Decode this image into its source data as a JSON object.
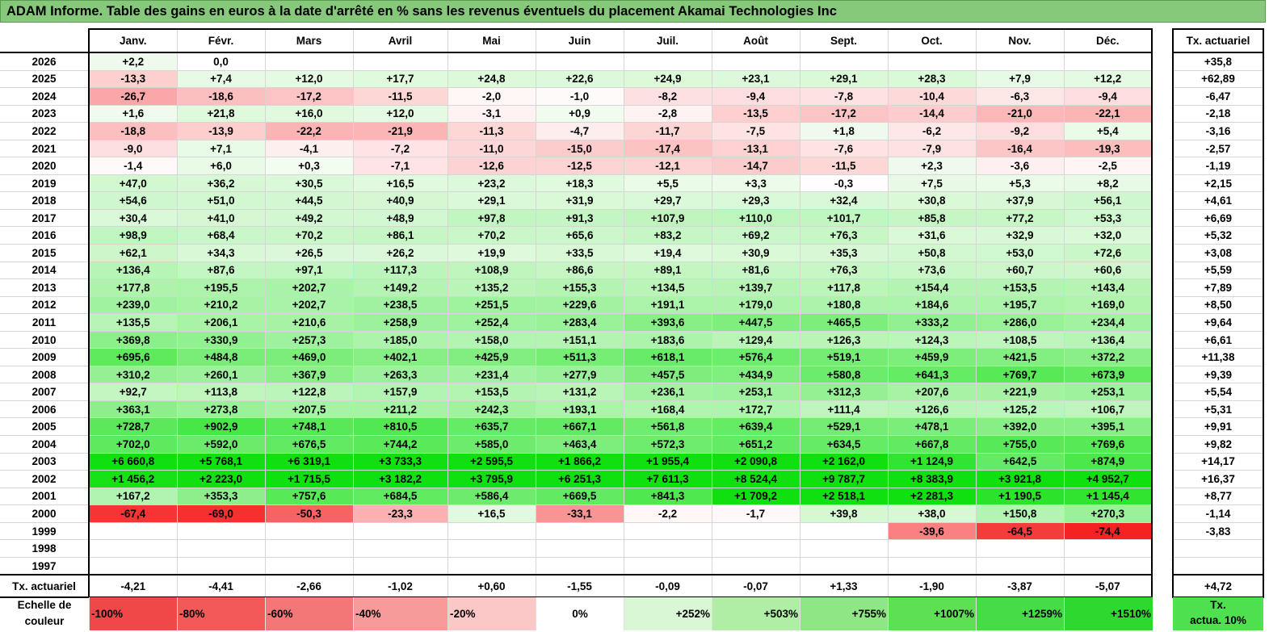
{
  "title": "ADAM Informe. Table des gains en euros à la date d'arrêté en % sans les revenus éventuels du placement Akamai Technologies Inc",
  "months": [
    "Janv.",
    "Févr.",
    "Mars",
    "Avril",
    "Mai",
    "Juin",
    "Juil.",
    "Août",
    "Sept.",
    "Oct.",
    "Nov.",
    "Déc."
  ],
  "actuarial_header": "Tx. actuariel",
  "rows": [
    {
      "year": "2026",
      "values": [
        "+2,2",
        "0,0",
        "",
        "",
        "",
        "",
        "",
        "",
        "",
        "",
        "",
        ""
      ],
      "act": "+35,8"
    },
    {
      "year": "2025",
      "values": [
        "-13,3",
        "+7,4",
        "+12,0",
        "+17,7",
        "+24,8",
        "+22,6",
        "+24,9",
        "+23,1",
        "+29,1",
        "+28,3",
        "+7,9",
        "+12,2"
      ],
      "act": "+62,89"
    },
    {
      "year": "2024",
      "values": [
        "-26,7",
        "-18,6",
        "-17,2",
        "-11,5",
        "-2,0",
        "-1,0",
        "-8,2",
        "-9,4",
        "-7,8",
        "-10,4",
        "-6,3",
        "-9,4"
      ],
      "act": "-6,47"
    },
    {
      "year": "2023",
      "values": [
        "+1,6",
        "+21,8",
        "+16,0",
        "+12,0",
        "-3,1",
        "+0,9",
        "-2,8",
        "-13,5",
        "-17,2",
        "-14,4",
        "-21,0",
        "-22,1"
      ],
      "act": "-2,18"
    },
    {
      "year": "2022",
      "values": [
        "-18,8",
        "-13,9",
        "-22,2",
        "-21,9",
        "-11,3",
        "-4,7",
        "-11,7",
        "-7,5",
        "+1,8",
        "-6,2",
        "-9,2",
        "+5,4"
      ],
      "act": "-3,16"
    },
    {
      "year": "2021",
      "values": [
        "-9,0",
        "+7,1",
        "-4,1",
        "-7,2",
        "-11,0",
        "-15,0",
        "-17,4",
        "-13,1",
        "-7,6",
        "-7,9",
        "-16,4",
        "-19,3"
      ],
      "act": "-2,57"
    },
    {
      "year": "2020",
      "values": [
        "-1,4",
        "+6,0",
        "+0,3",
        "-7,1",
        "-12,6",
        "-12,5",
        "-12,1",
        "-14,7",
        "-11,5",
        "+2,3",
        "-3,6",
        "-2,5"
      ],
      "act": "-1,19"
    },
    {
      "year": "2019",
      "values": [
        "+47,0",
        "+36,2",
        "+30,5",
        "+16,5",
        "+23,2",
        "+18,3",
        "+5,5",
        "+3,3",
        "-0,3",
        "+7,5",
        "+5,3",
        "+8,2"
      ],
      "act": "+2,15"
    },
    {
      "year": "2018",
      "values": [
        "+54,6",
        "+51,0",
        "+44,5",
        "+40,9",
        "+29,1",
        "+31,9",
        "+29,7",
        "+29,3",
        "+32,4",
        "+30,8",
        "+37,9",
        "+56,1"
      ],
      "act": "+4,61"
    },
    {
      "year": "2017",
      "values": [
        "+30,4",
        "+41,0",
        "+49,2",
        "+48,9",
        "+97,8",
        "+91,3",
        "+107,9",
        "+110,0",
        "+101,7",
        "+85,8",
        "+77,2",
        "+53,3"
      ],
      "act": "+6,69"
    },
    {
      "year": "2016",
      "values": [
        "+98,9",
        "+68,4",
        "+70,2",
        "+86,1",
        "+70,2",
        "+65,6",
        "+83,2",
        "+69,2",
        "+76,3",
        "+31,6",
        "+32,9",
        "+32,0"
      ],
      "act": "+5,32"
    },
    {
      "year": "2015",
      "values": [
        "+62,1",
        "+34,3",
        "+26,5",
        "+26,2",
        "+19,9",
        "+33,5",
        "+19,4",
        "+30,9",
        "+35,3",
        "+50,8",
        "+53,0",
        "+72,6"
      ],
      "act": "+3,08"
    },
    {
      "year": "2014",
      "values": [
        "+136,4",
        "+87,6",
        "+97,1",
        "+117,3",
        "+108,9",
        "+86,6",
        "+89,1",
        "+81,6",
        "+76,3",
        "+73,6",
        "+60,7",
        "+60,6"
      ],
      "act": "+5,59"
    },
    {
      "year": "2013",
      "values": [
        "+177,8",
        "+195,5",
        "+202,7",
        "+149,2",
        "+135,2",
        "+155,3",
        "+134,5",
        "+139,7",
        "+117,8",
        "+154,4",
        "+153,5",
        "+143,4"
      ],
      "act": "+7,89"
    },
    {
      "year": "2012",
      "values": [
        "+239,0",
        "+210,2",
        "+202,7",
        "+238,5",
        "+251,5",
        "+229,6",
        "+191,1",
        "+179,0",
        "+180,8",
        "+184,6",
        "+195,7",
        "+169,0"
      ],
      "act": "+8,50"
    },
    {
      "year": "2011",
      "values": [
        "+135,5",
        "+206,1",
        "+210,6",
        "+258,9",
        "+252,4",
        "+283,4",
        "+393,6",
        "+447,5",
        "+465,5",
        "+333,2",
        "+286,0",
        "+234,4"
      ],
      "act": "+9,64"
    },
    {
      "year": "2010",
      "values": [
        "+369,8",
        "+330,9",
        "+257,3",
        "+185,0",
        "+158,0",
        "+151,1",
        "+183,6",
        "+129,4",
        "+126,3",
        "+124,3",
        "+108,5",
        "+136,4"
      ],
      "act": "+6,61"
    },
    {
      "year": "2009",
      "values": [
        "+695,6",
        "+484,8",
        "+469,0",
        "+402,1",
        "+425,9",
        "+511,3",
        "+618,1",
        "+576,4",
        "+519,1",
        "+459,9",
        "+421,5",
        "+372,2"
      ],
      "act": "+11,38"
    },
    {
      "year": "2008",
      "values": [
        "+310,2",
        "+260,1",
        "+367,9",
        "+263,3",
        "+231,4",
        "+277,9",
        "+457,5",
        "+434,9",
        "+580,8",
        "+641,3",
        "+769,7",
        "+673,9"
      ],
      "act": "+9,39"
    },
    {
      "year": "2007",
      "values": [
        "+92,7",
        "+113,8",
        "+122,8",
        "+157,9",
        "+153,5",
        "+131,2",
        "+236,1",
        "+253,1",
        "+312,3",
        "+207,6",
        "+221,9",
        "+253,1"
      ],
      "act": "+5,54"
    },
    {
      "year": "2006",
      "values": [
        "+363,1",
        "+273,8",
        "+207,5",
        "+211,2",
        "+242,3",
        "+193,1",
        "+168,4",
        "+172,7",
        "+111,4",
        "+126,6",
        "+125,2",
        "+106,7"
      ],
      "act": "+5,31"
    },
    {
      "year": "2005",
      "values": [
        "+728,7",
        "+902,9",
        "+748,1",
        "+810,5",
        "+635,7",
        "+667,1",
        "+561,8",
        "+639,4",
        "+529,1",
        "+478,1",
        "+392,0",
        "+395,1"
      ],
      "act": "+9,91"
    },
    {
      "year": "2004",
      "values": [
        "+702,0",
        "+592,0",
        "+676,5",
        "+744,2",
        "+585,0",
        "+463,4",
        "+572,3",
        "+651,2",
        "+634,5",
        "+667,8",
        "+755,0",
        "+769,6"
      ],
      "act": "+9,82"
    },
    {
      "year": "2003",
      "values": [
        "+6 660,8",
        "+5 768,1",
        "+6 319,1",
        "+3 733,3",
        "+2 595,5",
        "+1 866,2",
        "+1 955,4",
        "+2 090,8",
        "+2 162,0",
        "+1 124,9",
        "+642,5",
        "+874,9"
      ],
      "act": "+14,17"
    },
    {
      "year": "2002",
      "values": [
        "+1 456,2",
        "+2 223,0",
        "+1 715,5",
        "+3 182,2",
        "+3 795,9",
        "+6 251,3",
        "+7 611,3",
        "+8 524,4",
        "+9 787,7",
        "+8 383,9",
        "+3 921,8",
        "+4 952,7"
      ],
      "act": "+16,37"
    },
    {
      "year": "2001",
      "values": [
        "+167,2",
        "+353,3",
        "+757,6",
        "+684,5",
        "+586,4",
        "+669,5",
        "+841,3",
        "+1 709,2",
        "+2 518,1",
        "+2 281,3",
        "+1 190,5",
        "+1 145,4"
      ],
      "act": "+8,77"
    },
    {
      "year": "2000",
      "values": [
        "-67,4",
        "-69,0",
        "-50,3",
        "-23,3",
        "+16,5",
        "-33,1",
        "-2,2",
        "-1,7",
        "+39,8",
        "+38,0",
        "+150,8",
        "+270,3"
      ],
      "act": "-1,14"
    },
    {
      "year": "1999",
      "values": [
        "",
        "",
        "",
        "",
        "",
        "",
        "",
        "",
        "",
        "-39,6",
        "-64,5",
        "-74,4"
      ],
      "act": "-3,83"
    },
    {
      "year": "1998",
      "values": [
        "",
        "",
        "",
        "",
        "",
        "",
        "",
        "",
        "",
        "",
        "",
        ""
      ],
      "act": ""
    },
    {
      "year": "1997",
      "values": [
        "",
        "",
        "",
        "",
        "",
        "",
        "",
        "",
        "",
        "",
        "",
        ""
      ],
      "act": ""
    }
  ],
  "footer": {
    "label": "Tx. actuariel",
    "values": [
      "-4,21",
      "-4,41",
      "-2,66",
      "-1,02",
      "+0,60",
      "-1,55",
      "-0,09",
      "-0,07",
      "+1,33",
      "-1,90",
      "-3,87",
      "-5,07"
    ],
    "act": "+4,72"
  },
  "scale": {
    "label_line1": "Echelle de",
    "label_line2": "couleur",
    "items": [
      {
        "text": "-100%",
        "color": "#f04848",
        "align": "l"
      },
      {
        "text": "-80%",
        "color": "#f25a5a",
        "align": "l"
      },
      {
        "text": "-60%",
        "color": "#f47777",
        "align": "l"
      },
      {
        "text": "-40%",
        "color": "#f79a9a",
        "align": "l"
      },
      {
        "text": "-20%",
        "color": "#fbc7c7",
        "align": "l"
      },
      {
        "text": "0%",
        "color": "#ffffff",
        "align": "c"
      },
      {
        "text": "+252%",
        "color": "#d9f7d4",
        "align": "r"
      },
      {
        "text": "+503%",
        "color": "#b0eea6",
        "align": "r"
      },
      {
        "text": "+755%",
        "color": "#8ee684",
        "align": "r"
      },
      {
        "text": "+1007%",
        "color": "#5ee055",
        "align": "r"
      },
      {
        "text": "+1259%",
        "color": "#46dc46",
        "align": "r"
      },
      {
        "text": "+1510%",
        "color": "#2ed82e",
        "align": "r"
      }
    ],
    "act_line1": "Tx.",
    "act_line2": "actua. 10%",
    "act_color": "#4ee04e"
  },
  "colors": {
    "title_bg": "#86c97b"
  }
}
